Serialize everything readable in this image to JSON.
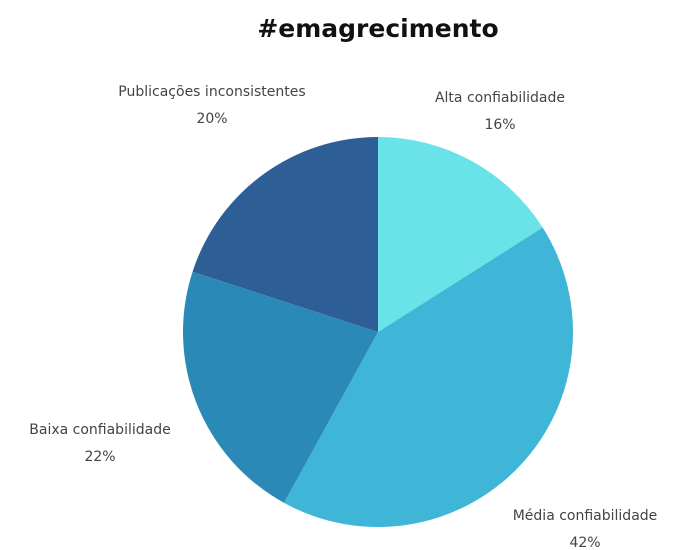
{
  "chart_data": {
    "type": "pie",
    "title": "#emagrecimento",
    "categories": [
      "Alta confiabilidade",
      "Média confiabilidade",
      "Baixa confiabilidade",
      "Publicações inconsistentes"
    ],
    "values": [
      16,
      42,
      22,
      20
    ],
    "value_labels": [
      "16%",
      "42%",
      "22%",
      "20%"
    ],
    "colors": [
      "#6ae3e8",
      "#3fb6d7",
      "#2b89b8",
      "#2d5e96"
    ]
  }
}
